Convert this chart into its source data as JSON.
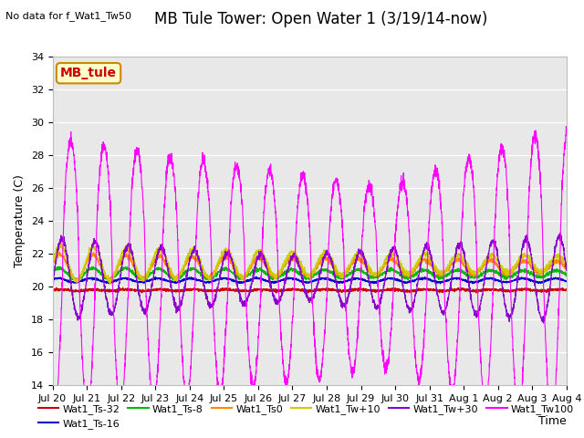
{
  "title": "MB Tule Tower: Open Water 1 (3/19/14-now)",
  "no_data_text": "No data for f_Wat1_Tw50",
  "xlabel": "Time",
  "ylabel": "Temperature (C)",
  "ylim": [
    14,
    34
  ],
  "yticks": [
    14,
    16,
    18,
    20,
    22,
    24,
    26,
    28,
    30,
    32,
    34
  ],
  "x_tick_labels": [
    "Jul 20",
    "Jul 21",
    "Jul 22",
    "Jul 23",
    "Jul 24",
    "Jul 25",
    "Jul 26",
    "Jul 27",
    "Jul 28",
    "Jul 29",
    "Jul 30",
    "Jul 31",
    "Aug 1",
    "Aug 2",
    "Aug 3",
    "Aug 4"
  ],
  "bg_color": "#e8e8e8",
  "fig_bg_color": "#ffffff",
  "annotation_box": {
    "text": "MB_tule",
    "facecolor": "#ffffcc",
    "edgecolor": "#cc8800",
    "textcolor": "#cc0000",
    "fontsize": 10,
    "fontweight": "bold"
  },
  "title_fontsize": 12,
  "axis_label_fontsize": 9,
  "tick_fontsize": 8,
  "legend_fontsize": 8,
  "series_colors": {
    "Wat1_Ts-32": "#cc0000",
    "Wat1_Ts-16": "#0000cc",
    "Wat1_Ts-8": "#00bb00",
    "Wat1_Ts0": "#ff8800",
    "Wat1_Tw+10": "#cccc00",
    "Wat1_Tw+30": "#8800cc",
    "Wat1_Tw100": "#ff00ff"
  }
}
